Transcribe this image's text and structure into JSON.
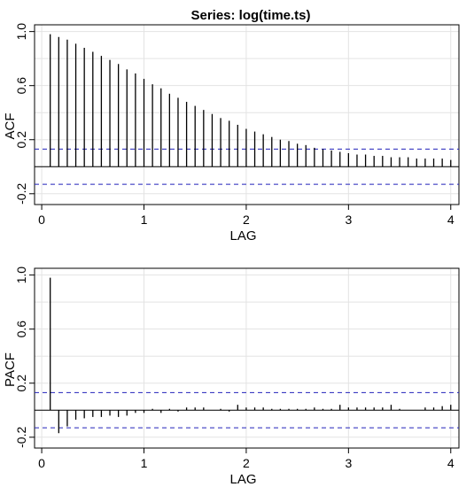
{
  "title": "Series:  log(time.ts)",
  "chart_data": [
    {
      "type": "bar",
      "xlabel": "LAG",
      "ylabel": "ACF",
      "xlim": [
        -0.07,
        4.08
      ],
      "ylim": [
        -0.28,
        1.05
      ],
      "x_ticks": [
        "0",
        "1",
        "2",
        "3",
        "4"
      ],
      "y_ticks": [
        "-0.2",
        "0.2",
        "0.6",
        "1.0"
      ],
      "grid": true,
      "confidence_bound": 0.13,
      "x": [
        0.0833,
        0.1667,
        0.25,
        0.3333,
        0.4167,
        0.5,
        0.5833,
        0.6667,
        0.75,
        0.8333,
        0.9167,
        1.0,
        1.0833,
        1.1667,
        1.25,
        1.3333,
        1.4167,
        1.5,
        1.5833,
        1.6667,
        1.75,
        1.8333,
        1.9167,
        2.0,
        2.0833,
        2.1667,
        2.25,
        2.3333,
        2.4167,
        2.5,
        2.5833,
        2.6667,
        2.75,
        2.8333,
        2.9167,
        3.0,
        3.0833,
        3.1667,
        3.25,
        3.3333,
        3.4167,
        3.5,
        3.5833,
        3.6667,
        3.75,
        3.8333,
        3.9167,
        4.0
      ],
      "values": [
        0.98,
        0.96,
        0.94,
        0.91,
        0.88,
        0.85,
        0.82,
        0.79,
        0.76,
        0.72,
        0.69,
        0.65,
        0.61,
        0.58,
        0.54,
        0.51,
        0.48,
        0.45,
        0.42,
        0.39,
        0.36,
        0.34,
        0.31,
        0.28,
        0.26,
        0.24,
        0.22,
        0.2,
        0.19,
        0.17,
        0.16,
        0.14,
        0.13,
        0.12,
        0.11,
        0.1,
        0.09,
        0.09,
        0.08,
        0.08,
        0.07,
        0.07,
        0.07,
        0.06,
        0.06,
        0.06,
        0.06,
        0.05
      ]
    },
    {
      "type": "bar",
      "xlabel": "LAG",
      "ylabel": "PACF",
      "xlim": [
        -0.07,
        4.08
      ],
      "ylim": [
        -0.28,
        1.05
      ],
      "x_ticks": [
        "0",
        "1",
        "2",
        "3",
        "4"
      ],
      "y_ticks": [
        "-0.2",
        "0.2",
        "0.6",
        "1.0"
      ],
      "grid": true,
      "confidence_bound": 0.13,
      "x": [
        0.0833,
        0.1667,
        0.25,
        0.3333,
        0.4167,
        0.5,
        0.5833,
        0.6667,
        0.75,
        0.8333,
        0.9167,
        1.0,
        1.0833,
        1.1667,
        1.25,
        1.3333,
        1.4167,
        1.5,
        1.5833,
        1.6667,
        1.75,
        1.8333,
        1.9167,
        2.0,
        2.0833,
        2.1667,
        2.25,
        2.3333,
        2.4167,
        2.5,
        2.5833,
        2.6667,
        2.75,
        2.8333,
        2.9167,
        3.0,
        3.0833,
        3.1667,
        3.25,
        3.3333,
        3.4167,
        3.5,
        3.5833,
        3.6667,
        3.75,
        3.8333,
        3.9167,
        4.0
      ],
      "values": [
        0.98,
        -0.17,
        -0.12,
        -0.07,
        -0.06,
        -0.05,
        -0.05,
        -0.04,
        -0.05,
        -0.04,
        -0.02,
        -0.02,
        0.01,
        -0.02,
        0.01,
        -0.01,
        0.02,
        0.02,
        0.02,
        0.0,
        0.01,
        -0.01,
        0.04,
        0.02,
        0.02,
        0.02,
        0.01,
        0.01,
        0.01,
        0.01,
        0.01,
        0.02,
        0.01,
        0.01,
        0.04,
        0.02,
        0.02,
        0.02,
        0.02,
        0.02,
        0.04,
        0.01,
        0.0,
        0.0,
        0.02,
        0.02,
        0.03,
        0.04
      ]
    }
  ]
}
